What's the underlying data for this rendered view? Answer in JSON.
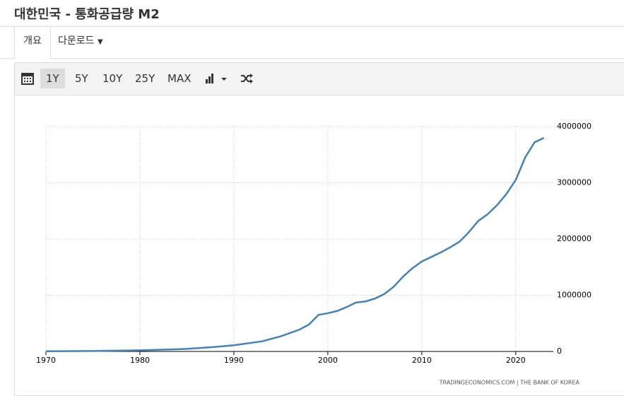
{
  "header": {
    "title": "대한민국 - 통화공급량 M2"
  },
  "tabs": [
    "개요",
    "다운로드"
  ],
  "toolbar": [
    "1Y",
    "5Y",
    "10Y",
    "25Y",
    "MAX"
  ],
  "chart_data": {
    "type": "line",
    "source": "TRADINGECONOMICS.COM | THE BANK OF KOREA",
    "x": [
      1970,
      1975,
      1980,
      1985,
      1988,
      1990,
      1993,
      1995,
      1997,
      1998,
      1999,
      2000,
      2001,
      2002,
      2003,
      2004,
      2005,
      2006,
      2007,
      2008,
      2009,
      2010,
      2011,
      2012,
      2013,
      2014,
      2015,
      2016,
      2017,
      2018,
      2019,
      2020,
      2021,
      2022,
      2023
    ],
    "series": [
      {
        "name": "M2",
        "color": "#4682b4",
        "values": [
          3000,
          8000,
          20000,
          45000,
          80000,
          110000,
          180000,
          270000,
          390000,
          480000,
          650000,
          680000,
          720000,
          790000,
          870000,
          890000,
          940000,
          1020000,
          1150000,
          1330000,
          1480000,
          1600000,
          1680000,
          1760000,
          1850000,
          1950000,
          2120000,
          2320000,
          2440000,
          2600000,
          2800000,
          3050000,
          3450000,
          3720000,
          3800000
        ]
      }
    ],
    "xlim": [
      1970,
      2024
    ],
    "ylim": [
      0,
      4000000
    ],
    "xticks": [
      1970,
      1980,
      1990,
      2000,
      2010,
      2020
    ],
    "yticks": [
      0,
      1000000,
      2000000,
      3000000,
      4000000
    ],
    "grid": true
  }
}
